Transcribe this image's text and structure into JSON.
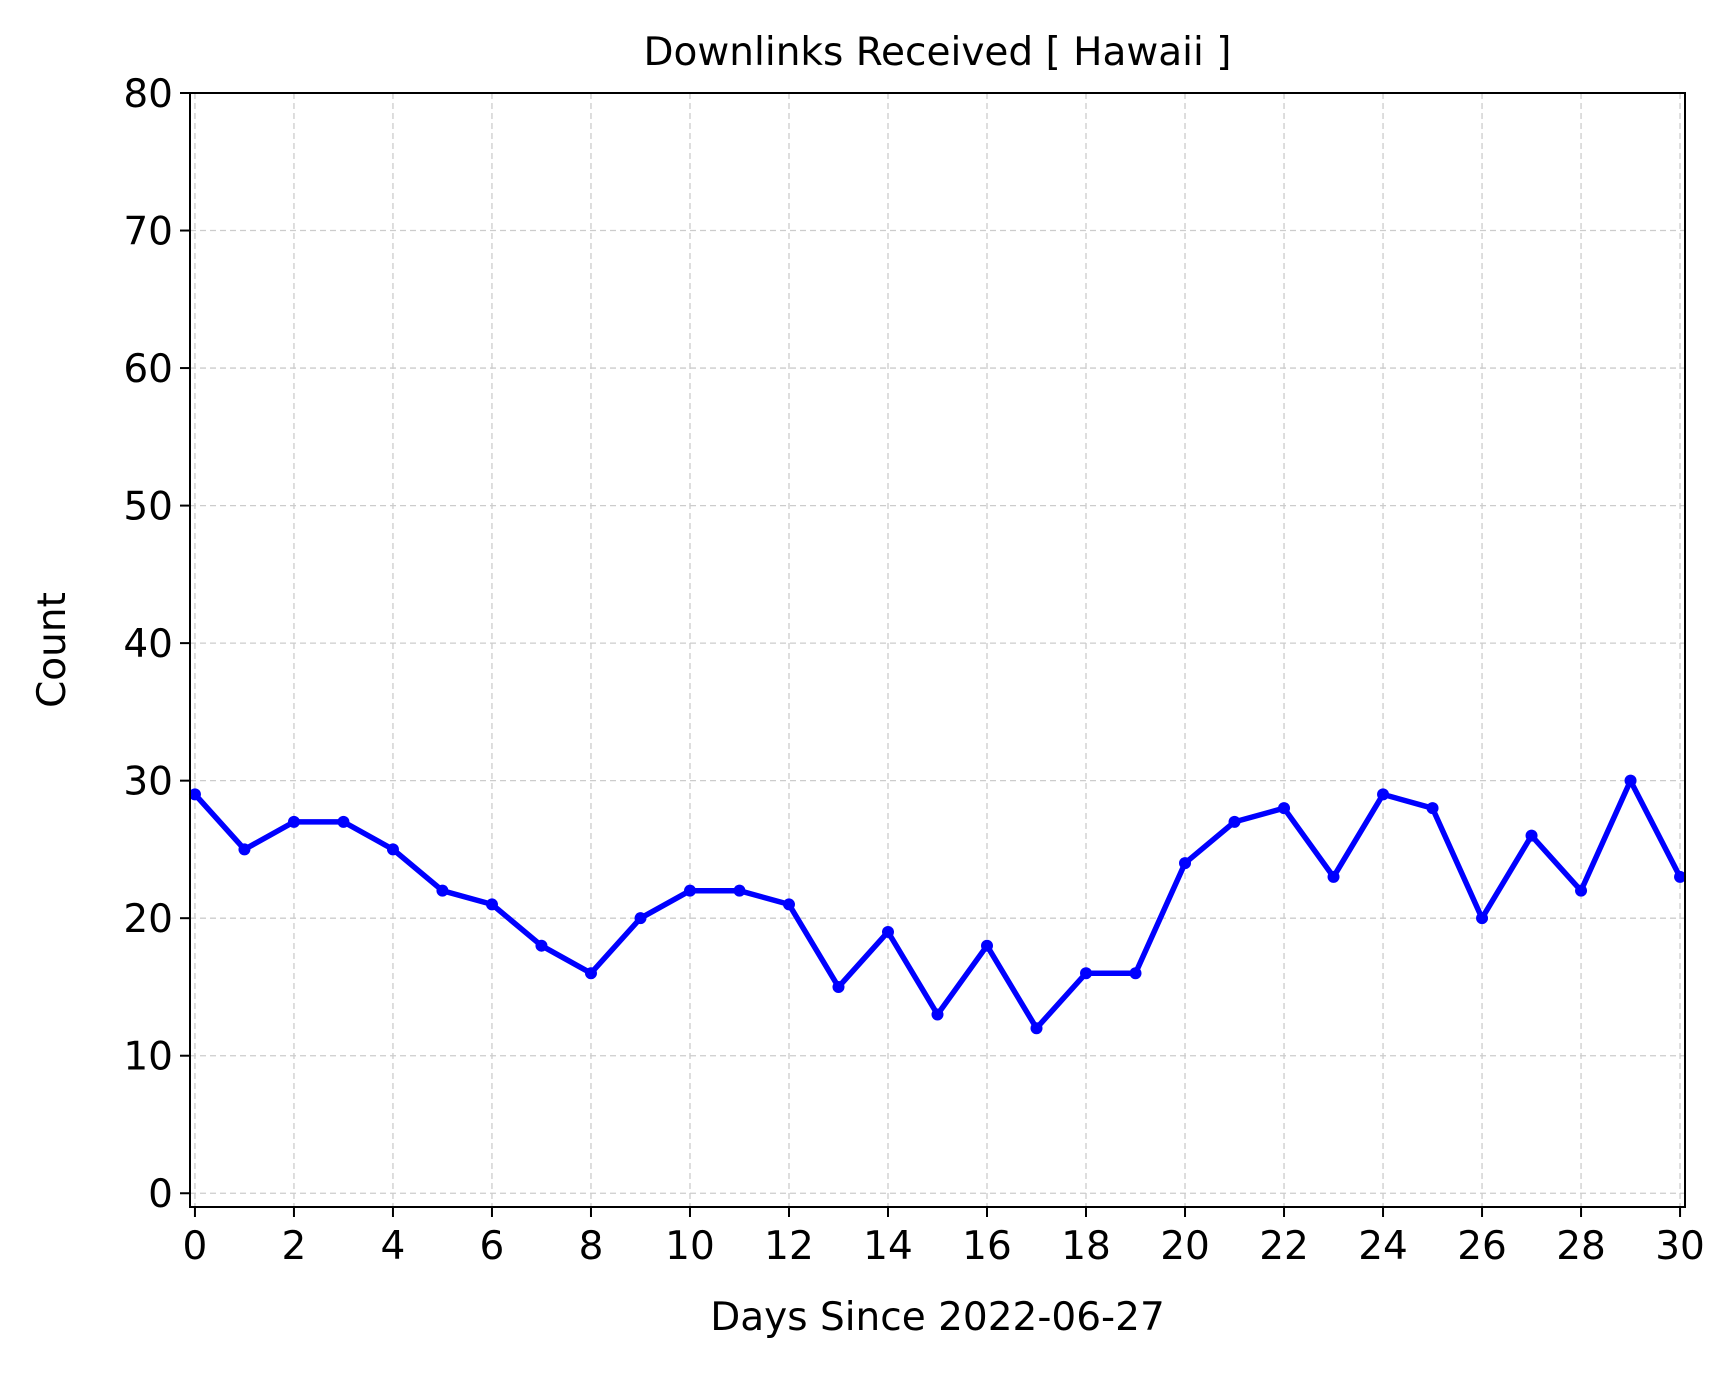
{
  "chart_data": {
    "type": "line",
    "title": "Downlinks Received [ Hawaii ]",
    "xlabel": "Days Since 2022-06-27",
    "ylabel": "Count",
    "xlim": [
      -0.1,
      30.1
    ],
    "ylim": [
      -1,
      80
    ],
    "xticks": [
      0,
      2,
      4,
      6,
      8,
      10,
      12,
      14,
      16,
      18,
      20,
      22,
      24,
      26,
      28,
      30
    ],
    "yticks": [
      0,
      10,
      20,
      30,
      40,
      50,
      60,
      70,
      80
    ],
    "grid": true,
    "series": [
      {
        "color": "#0000ff",
        "x": [
          0,
          1,
          2,
          3,
          4,
          5,
          6,
          7,
          8,
          9,
          10,
          11,
          12,
          13,
          14,
          15,
          16,
          17,
          18,
          19,
          20,
          21,
          22,
          23,
          24,
          25,
          26,
          27,
          28,
          29,
          30
        ],
        "y": [
          29,
          25,
          27,
          27,
          25,
          22,
          21,
          18,
          16,
          20,
          22,
          22,
          21,
          15,
          19,
          13,
          18,
          12,
          16,
          16,
          24,
          27,
          28,
          23,
          29,
          28,
          20,
          26,
          22,
          30,
          23
        ]
      }
    ]
  }
}
